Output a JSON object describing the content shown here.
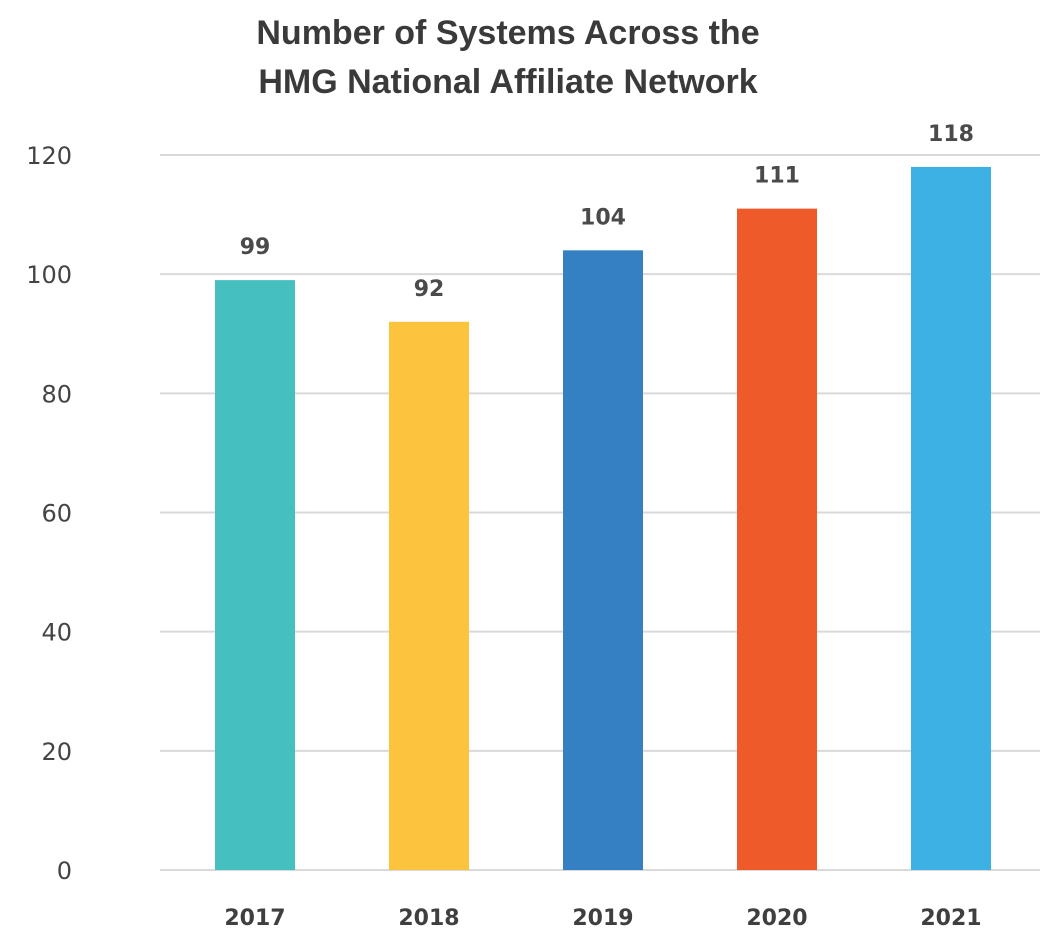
{
  "chart_data": {
    "type": "bar",
    "title_lines": [
      "Number of Systems Across the",
      "HMG National  Affiliate Network"
    ],
    "categories": [
      "2017",
      "2018",
      "2019",
      "2020",
      "2021"
    ],
    "values": [
      99,
      92,
      104,
      111,
      118
    ],
    "data_labels": [
      "99",
      "92",
      "104",
      "111",
      "118"
    ],
    "colors": [
      "#45BFBF",
      "#FCC43C",
      "#3480C3",
      "#EF5A2A",
      "#3DB1E3"
    ],
    "yticks": [
      0,
      20,
      40,
      60,
      80,
      100,
      120
    ],
    "ylim": [
      0,
      120
    ],
    "xlabel": "",
    "ylabel": "",
    "grid": true,
    "legend": "none"
  }
}
